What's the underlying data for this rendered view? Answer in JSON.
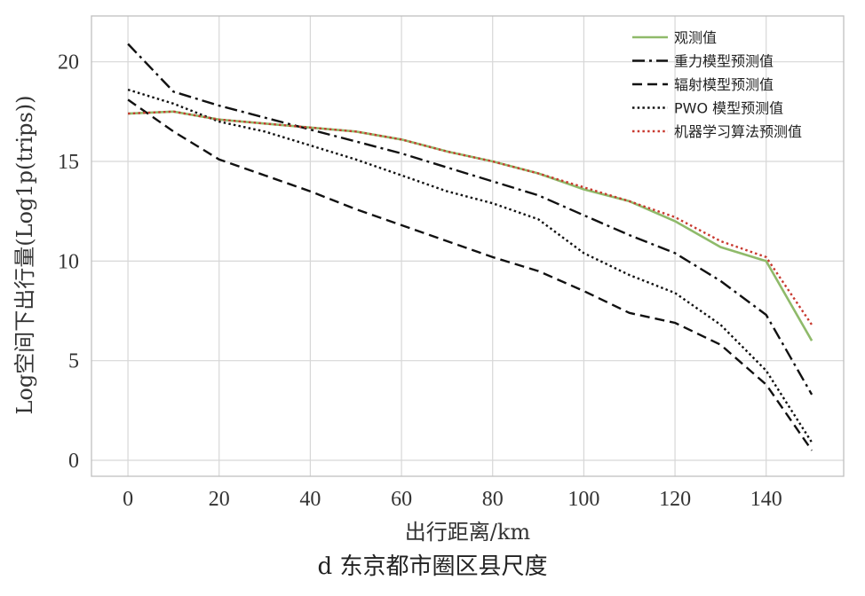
{
  "caption": "d 东京都市圈区县尺度",
  "chart_data": {
    "type": "line",
    "title": "",
    "xlabel": "出行距离/km",
    "ylabel": "Log空间下出行量(Log1p(trips))",
    "xlim": [
      -8,
      157
    ],
    "ylim": [
      -0.8,
      22.3
    ],
    "xticks": [
      0,
      20,
      40,
      60,
      80,
      100,
      120,
      140
    ],
    "yticks": [
      0,
      5,
      10,
      15,
      20
    ],
    "x": [
      0,
      10,
      20,
      30,
      40,
      50,
      60,
      70,
      80,
      90,
      100,
      110,
      120,
      130,
      140,
      150
    ],
    "legend_position": "top-right",
    "series": [
      {
        "name": "观测值",
        "color": "#8fba6a",
        "style": "solid",
        "values": [
          17.4,
          17.5,
          17.1,
          16.9,
          16.7,
          16.5,
          16.1,
          15.5,
          15.0,
          14.4,
          13.6,
          13.0,
          12.0,
          10.7,
          10.0,
          6.0
        ]
      },
      {
        "name": "重力模型预测值",
        "color": "#111111",
        "style": "dashdot",
        "values": [
          20.9,
          18.5,
          17.8,
          17.2,
          16.6,
          16.0,
          15.4,
          14.7,
          14.0,
          13.3,
          12.3,
          11.3,
          10.4,
          9.0,
          7.3,
          3.3
        ]
      },
      {
        "name": "辐射模型预测值",
        "color": "#111111",
        "style": "dashed",
        "values": [
          18.1,
          16.5,
          15.1,
          14.3,
          13.5,
          12.6,
          11.8,
          11.0,
          10.2,
          9.5,
          8.5,
          7.4,
          6.9,
          5.8,
          3.8,
          0.5
        ]
      },
      {
        "name": "PWO 模型预测值",
        "color": "#111111",
        "style": "dotted",
        "values": [
          18.6,
          17.9,
          17.0,
          16.5,
          15.8,
          15.1,
          14.3,
          13.5,
          12.9,
          12.1,
          10.4,
          9.3,
          8.4,
          6.8,
          4.5,
          0.9
        ]
      },
      {
        "name": "机器学习算法预测值",
        "color": "#c8392f",
        "style": "dotted",
        "values": [
          17.4,
          17.5,
          17.1,
          16.9,
          16.7,
          16.5,
          16.1,
          15.5,
          15.0,
          14.4,
          13.7,
          13.0,
          12.2,
          11.0,
          10.2,
          6.8
        ]
      }
    ]
  }
}
